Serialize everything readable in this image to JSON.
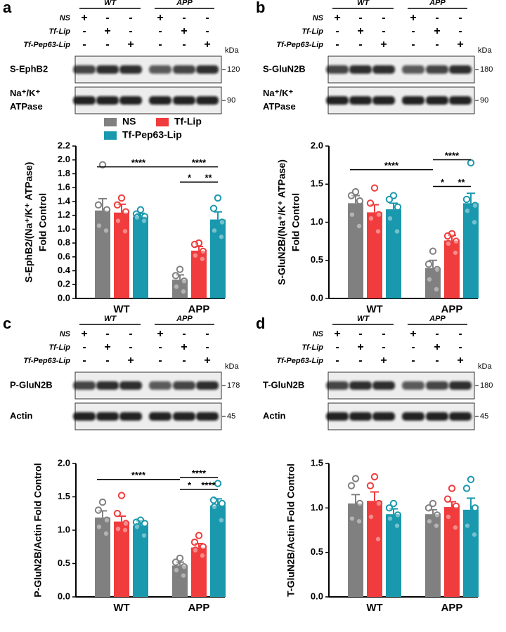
{
  "blot_header": {
    "groups": [
      "WT",
      "APP"
    ],
    "conditions": [
      "NS",
      "Tf-Lip",
      "Tf-Pep63-Lip"
    ],
    "signs": [
      [
        "+",
        "-",
        "-",
        "+",
        "-",
        "-"
      ],
      [
        "-",
        "+",
        "-",
        "-",
        "+",
        "-"
      ],
      [
        "-",
        "-",
        "+",
        "-",
        "-",
        "+"
      ]
    ],
    "unit": "kDa"
  },
  "panels": [
    {
      "label": "a",
      "blots": [
        {
          "name": "S-EphB2",
          "mw": "120"
        },
        {
          "name": "Na⁺/K⁺ ATPase",
          "mw": "90"
        }
      ]
    },
    {
      "label": "b",
      "blots": [
        {
          "name": "S-GluN2B",
          "mw": "180"
        },
        {
          "name": "Na⁺/K⁺ ATPase",
          "mw": "90"
        }
      ]
    },
    {
      "label": "c",
      "blots": [
        {
          "name": "P-GluN2B",
          "mw": "178"
        },
        {
          "name": "Actin",
          "mw": "45"
        }
      ]
    },
    {
      "label": "d",
      "blots": [
        {
          "name": "T-GluN2B",
          "mw": "180"
        },
        {
          "name": "Actin",
          "mw": "45"
        }
      ]
    }
  ],
  "chart_data": [
    {
      "type": "bar",
      "y_label": [
        "S-EphB2/(Na⁺/K⁺ ATPase)",
        "Fold Control"
      ],
      "categories": [
        "WT",
        "APP"
      ],
      "legend": "top",
      "ylim": [
        0,
        2.2
      ],
      "yticks": [
        {
          "value": 0,
          "label": "0.0"
        },
        0.2,
        0.4,
        0.6,
        0.8,
        {
          "value": 1,
          "label": "1.0"
        },
        1.2,
        1.4,
        1.6,
        1.8,
        {
          "value": 2,
          "label": "2.0"
        },
        2.2
      ],
      "annotations": [
        "****",
        "****",
        "*",
        "**"
      ],
      "series": [
        {
          "name": "NS",
          "color": "#808080",
          "values": [
            1.27,
            0.27
          ],
          "errors": [
            0.17,
            0.07
          ],
          "points": [
            [
              1.93,
              1.35,
              1.28,
              1.05,
              0.98
            ],
            [
              0.42,
              0.33,
              0.25,
              0.17,
              0.1
            ]
          ]
        },
        {
          "name": "Tf-Lip",
          "color": "#f03c3c",
          "values": [
            1.24,
            0.69
          ],
          "errors": [
            0.12,
            0.06
          ],
          "points": [
            [
              1.45,
              1.35,
              1.25,
              1.12,
              0.97
            ],
            [
              0.8,
              0.78,
              0.68,
              0.62,
              0.57
            ]
          ]
        },
        {
          "name": "Tf-Pep63-Lip",
          "color": "#1a98ad",
          "values": [
            1.18,
            1.14
          ],
          "errors": [
            0.05,
            0.11
          ],
          "points": [
            [
              1.28,
              1.22,
              1.18,
              1.17,
              1.12
            ],
            [
              1.45,
              1.3,
              1.1,
              0.98,
              0.89
            ]
          ]
        }
      ]
    },
    {
      "type": "bar",
      "y_label": [
        "S-GluN2B/(Na⁺/K⁺ ATPase)",
        "Fold Control"
      ],
      "categories": [
        "WT",
        "APP"
      ],
      "ylim": [
        0,
        2.0
      ],
      "yticks": [
        {
          "value": 0,
          "label": "0.0"
        },
        0.5,
        {
          "value": 1,
          "label": "1.0"
        },
        1.5,
        {
          "value": 2,
          "label": "2.0"
        }
      ],
      "annotations": [
        "****",
        "****",
        "*",
        "**"
      ],
      "series": [
        {
          "name": "NS",
          "color": "#808080",
          "values": [
            1.25,
            0.4
          ],
          "errors": [
            0.1,
            0.1
          ],
          "points": [
            [
              1.4,
              1.35,
              1.28,
              1.1,
              0.95
            ],
            [
              0.62,
              0.45,
              0.38,
              0.25,
              0.12
            ]
          ]
        },
        {
          "name": "Tf-Lip",
          "color": "#f03c3c",
          "values": [
            1.13,
            0.76
          ],
          "errors": [
            0.1,
            0.07
          ],
          "points": [
            [
              1.45,
              1.25,
              1.1,
              1.05,
              0.88
            ],
            [
              0.85,
              0.82,
              0.75,
              0.72,
              0.6
            ]
          ]
        },
        {
          "name": "Tf-Pep63-Lip",
          "color": "#1a98ad",
          "values": [
            1.17,
            1.25
          ],
          "errors": [
            0.08,
            0.13
          ],
          "points": [
            [
              1.35,
              1.3,
              1.2,
              1.05,
              0.88
            ],
            [
              1.78,
              1.3,
              1.22,
              1.15,
              1.0
            ]
          ]
        }
      ]
    },
    {
      "type": "bar",
      "y_label": [
        "P-GluN2B/Actin Fold Control"
      ],
      "categories": [
        "WT",
        "APP"
      ],
      "ylim": [
        0,
        2.0
      ],
      "yticks": [
        {
          "value": 0,
          "label": "0.0"
        },
        0.5,
        {
          "value": 1,
          "label": "1.0"
        },
        1.5,
        {
          "value": 2,
          "label": "2.0"
        }
      ],
      "annotations": [
        "****",
        "****",
        "*",
        "****"
      ],
      "series": [
        {
          "name": "NS",
          "color": "#808080",
          "values": [
            1.19,
            0.47
          ],
          "errors": [
            0.1,
            0.05
          ],
          "points": [
            [
              1.42,
              1.3,
              1.15,
              1.05,
              0.95
            ],
            [
              0.58,
              0.52,
              0.45,
              0.4,
              0.32
            ]
          ]
        },
        {
          "name": "Tf-Lip",
          "color": "#f03c3c",
          "values": [
            1.13,
            0.74
          ],
          "errors": [
            0.08,
            0.06
          ],
          "points": [
            [
              1.52,
              1.25,
              1.1,
              1.02,
              1.0
            ],
            [
              0.92,
              0.82,
              0.75,
              0.7,
              0.62
            ]
          ]
        },
        {
          "name": "Tf-Pep63-Lip",
          "color": "#1a98ad",
          "values": [
            1.07,
            1.37
          ],
          "errors": [
            0.07,
            0.1
          ],
          "points": [
            [
              1.15,
              1.12,
              1.1,
              1.05,
              0.92
            ],
            [
              1.7,
              1.45,
              1.4,
              1.35,
              1.15
            ]
          ]
        }
      ]
    },
    {
      "type": "bar",
      "y_label": [
        "T-GluN2B/Actin Fold Control"
      ],
      "categories": [
        "WT",
        "APP"
      ],
      "ylim": [
        0,
        1.5
      ],
      "yticks": [
        {
          "value": 0,
          "label": "0.0"
        },
        0.5,
        {
          "value": 1,
          "label": "1.0"
        },
        1.5
      ],
      "annotations": [],
      "series": [
        {
          "name": "NS",
          "color": "#808080",
          "values": [
            1.05,
            0.93
          ],
          "errors": [
            0.1,
            0.05
          ],
          "points": [
            [
              1.33,
              1.25,
              1.05,
              0.88,
              0.85
            ],
            [
              1.05,
              1.0,
              0.92,
              0.85,
              0.8
            ]
          ]
        },
        {
          "name": "Tf-Lip",
          "color": "#f03c3c",
          "values": [
            1.08,
            1.01
          ],
          "errors": [
            0.1,
            0.06
          ],
          "points": [
            [
              1.35,
              1.25,
              1.05,
              0.9,
              0.65
            ],
            [
              1.22,
              1.1,
              1.02,
              0.9,
              0.78
            ]
          ]
        },
        {
          "name": "Tf-Pep63-Lip",
          "color": "#1a98ad",
          "values": [
            0.93,
            0.98
          ],
          "errors": [
            0.06,
            0.13
          ],
          "points": [
            [
              1.05,
              1.0,
              0.92,
              0.88,
              0.8
            ],
            [
              1.32,
              1.22,
              1.0,
              0.8,
              0.7
            ]
          ]
        }
      ]
    }
  ]
}
